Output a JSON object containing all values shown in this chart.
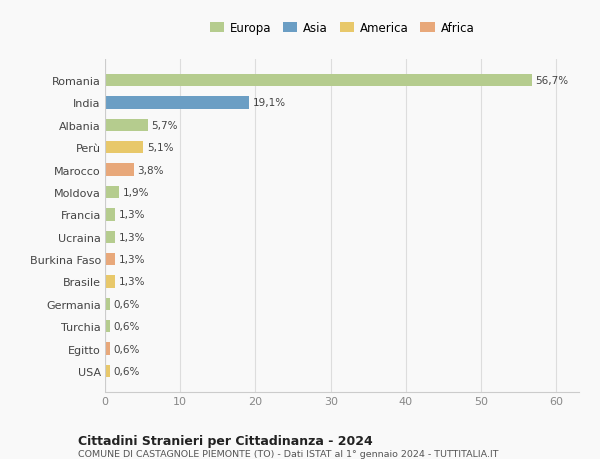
{
  "countries": [
    "Romania",
    "India",
    "Albania",
    "Perù",
    "Marocco",
    "Moldova",
    "Francia",
    "Ucraina",
    "Burkina Faso",
    "Brasile",
    "Germania",
    "Turchia",
    "Egitto",
    "USA"
  ],
  "values": [
    56.7,
    19.1,
    5.7,
    5.1,
    3.8,
    1.9,
    1.3,
    1.3,
    1.3,
    1.3,
    0.6,
    0.6,
    0.6,
    0.6
  ],
  "labels": [
    "56,7%",
    "19,1%",
    "5,7%",
    "5,1%",
    "3,8%",
    "1,9%",
    "1,3%",
    "1,3%",
    "1,3%",
    "1,3%",
    "0,6%",
    "0,6%",
    "0,6%",
    "0,6%"
  ],
  "colors": [
    "#b5cc8e",
    "#6b9ec4",
    "#b5cc8e",
    "#e8c86a",
    "#e8a87a",
    "#b5cc8e",
    "#b5cc8e",
    "#b5cc8e",
    "#e8a87a",
    "#e8c86a",
    "#b5cc8e",
    "#b5cc8e",
    "#e8a87a",
    "#e8c86a"
  ],
  "continents": [
    "Europa",
    "Asia",
    "Europa",
    "America",
    "Africa",
    "Europa",
    "Europa",
    "Europa",
    "Africa",
    "America",
    "Europa",
    "Europa",
    "Africa",
    "America"
  ],
  "legend_labels": [
    "Europa",
    "Asia",
    "America",
    "Africa"
  ],
  "legend_colors": [
    "#b5cc8e",
    "#6b9ec4",
    "#e8c86a",
    "#e8a87a"
  ],
  "title1": "Cittadini Stranieri per Cittadinanza - 2024",
  "title2": "COMUNE DI CASTAGNOLE PIEMONTE (TO) - Dati ISTAT al 1° gennaio 2024 - TUTTITALIA.IT",
  "xlim": [
    0,
    63
  ],
  "xticks": [
    0,
    10,
    20,
    30,
    40,
    50,
    60
  ],
  "bg_color": "#f9f9f9",
  "grid_color": "#dddddd"
}
